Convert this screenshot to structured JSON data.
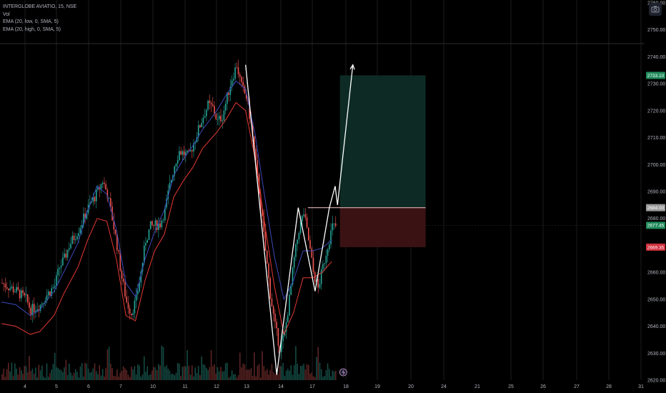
{
  "legend": {
    "symbol": "INTERGLOBE AVIATIO, 15, NSE",
    "vol": "Vol",
    "ema_low": "EMA (20, low, 0, SMA, 5)",
    "ema_high": "EMA (20, high, 0, SMA, 5)"
  },
  "colors": {
    "background": "#000000",
    "up": "#26a69a",
    "down": "#ef5350",
    "ema_low": "#e53935",
    "ema_high": "#3d49b8",
    "drawing": "#ffffff",
    "target_zone": "#0d2b24",
    "stop_zone": "#3b1214",
    "grid": "#1b1b1b"
  },
  "icons": {
    "camera": "camera-icon",
    "replay": "lightning-icon"
  },
  "chart_data": {
    "type": "candlestick",
    "title": "INTERGLOBE AVIATIO, 15, NSE",
    "y_ticks": [
      "2620.00",
      "2630.00",
      "2640.00",
      "2650.00",
      "2660.00",
      "2670.00",
      "2680.00",
      "2690.00",
      "2700.00",
      "2710.00",
      "2720.00",
      "2730.00",
      "2740.00",
      "2750.00",
      "2760.00"
    ],
    "ylim": [
      2620,
      2760
    ],
    "x_ticks": [
      "4",
      "5",
      "6",
      "7",
      "10",
      "11",
      "12",
      "13",
      "14",
      "17",
      "18",
      "19",
      "20",
      "21",
      "24",
      "25",
      "26",
      "27",
      "28",
      "31"
    ],
    "price_badges": [
      {
        "value": "2733.10",
        "kind": "target"
      },
      {
        "value": "2684.00",
        "kind": "entry"
      },
      {
        "value": "2677.45",
        "kind": "last"
      },
      {
        "value": "2669.35",
        "kind": "stop"
      }
    ],
    "position": {
      "type": "long",
      "entry": 2684.0,
      "target": 2733.1,
      "stop": 2669.35
    },
    "close_path": [
      [
        0,
        2656
      ],
      [
        3,
        2653
      ],
      [
        5,
        2650
      ],
      [
        6,
        2646
      ],
      [
        8,
        2648
      ],
      [
        9,
        2651
      ],
      [
        11,
        2655
      ],
      [
        12,
        2662
      ],
      [
        13,
        2665
      ],
      [
        14,
        2670
      ],
      [
        16,
        2676
      ],
      [
        17,
        2680
      ],
      [
        18,
        2684
      ],
      [
        20,
        2690
      ],
      [
        21,
        2694
      ],
      [
        22,
        2689
      ],
      [
        23,
        2680
      ],
      [
        24,
        2670
      ],
      [
        25,
        2658
      ],
      [
        26,
        2649
      ],
      [
        27,
        2645
      ],
      [
        28,
        2650
      ],
      [
        29,
        2660
      ],
      [
        30,
        2672
      ],
      [
        31,
        2677
      ],
      [
        33,
        2678
      ],
      [
        34,
        2683
      ],
      [
        35,
        2692
      ],
      [
        36,
        2700
      ],
      [
        37,
        2705
      ],
      [
        38,
        2704
      ],
      [
        39,
        2703
      ],
      [
        40,
        2708
      ],
      [
        42,
        2718
      ],
      [
        43,
        2722
      ],
      [
        44,
        2721
      ],
      [
        45,
        2716
      ],
      [
        46,
        2718
      ],
      [
        47,
        2725
      ],
      [
        48,
        2732
      ],
      [
        49,
        2737
      ],
      [
        50,
        2729
      ],
      [
        51,
        2725
      ],
      [
        52,
        2715
      ],
      [
        53,
        2700
      ],
      [
        54,
        2685
      ],
      [
        55,
        2668
      ],
      [
        56,
        2652
      ],
      [
        57,
        2640
      ],
      [
        58,
        2632
      ],
      [
        59,
        2637
      ],
      [
        60,
        2650
      ],
      [
        61,
        2665
      ],
      [
        62,
        2676
      ],
      [
        63,
        2682
      ],
      [
        64,
        2672
      ],
      [
        65,
        2660
      ],
      [
        66,
        2654
      ],
      [
        67,
        2662
      ],
      [
        68,
        2670
      ],
      [
        69,
        2677
      ]
    ],
    "ema_low": [
      [
        0,
        2641
      ],
      [
        3,
        2640
      ],
      [
        6,
        2637
      ],
      [
        8,
        2638
      ],
      [
        11,
        2644
      ],
      [
        13,
        2652
      ],
      [
        16,
        2662
      ],
      [
        18,
        2672
      ],
      [
        20,
        2680
      ],
      [
        22,
        2679
      ],
      [
        24,
        2665
      ],
      [
        26,
        2644
      ],
      [
        28,
        2642
      ],
      [
        30,
        2657
      ],
      [
        32,
        2668
      ],
      [
        34,
        2674
      ],
      [
        36,
        2688
      ],
      [
        38,
        2694
      ],
      [
        40,
        2699
      ],
      [
        42,
        2706
      ],
      [
        45,
        2712
      ],
      [
        47,
        2717
      ],
      [
        49,
        2723
      ],
      [
        51,
        2720
      ],
      [
        53,
        2702
      ],
      [
        55,
        2678
      ],
      [
        57,
        2655
      ],
      [
        59,
        2637
      ],
      [
        61,
        2645
      ],
      [
        63,
        2658
      ],
      [
        65,
        2658
      ],
      [
        67,
        2660
      ],
      [
        69,
        2664
      ]
    ],
    "ema_high": [
      [
        0,
        2649
      ],
      [
        3,
        2648
      ],
      [
        6,
        2644
      ],
      [
        8,
        2646
      ],
      [
        11,
        2653
      ],
      [
        13,
        2660
      ],
      [
        16,
        2671
      ],
      [
        18,
        2683
      ],
      [
        20,
        2692
      ],
      [
        22,
        2689
      ],
      [
        24,
        2676
      ],
      [
        26,
        2656
      ],
      [
        28,
        2651
      ],
      [
        30,
        2665
      ],
      [
        32,
        2675
      ],
      [
        34,
        2683
      ],
      [
        36,
        2696
      ],
      [
        38,
        2702
      ],
      [
        40,
        2707
      ],
      [
        42,
        2713
      ],
      [
        45,
        2720
      ],
      [
        47,
        2726
      ],
      [
        49,
        2731
      ],
      [
        51,
        2728
      ],
      [
        53,
        2711
      ],
      [
        55,
        2688
      ],
      [
        57,
        2666
      ],
      [
        59,
        2650
      ],
      [
        61,
        2657
      ],
      [
        63,
        2668
      ],
      [
        65,
        2668
      ],
      [
        67,
        2669
      ],
      [
        69,
        2672
      ]
    ],
    "drawn_path": [
      [
        51,
        2737
      ],
      [
        57.5,
        2622
      ],
      [
        62,
        2684
      ],
      [
        65.5,
        2653
      ],
      [
        68.5,
        2684
      ],
      [
        69.7,
        2692
      ],
      [
        70.2,
        2685
      ],
      [
        73.4,
        2737
      ]
    ],
    "x_total_bars": 126
  }
}
